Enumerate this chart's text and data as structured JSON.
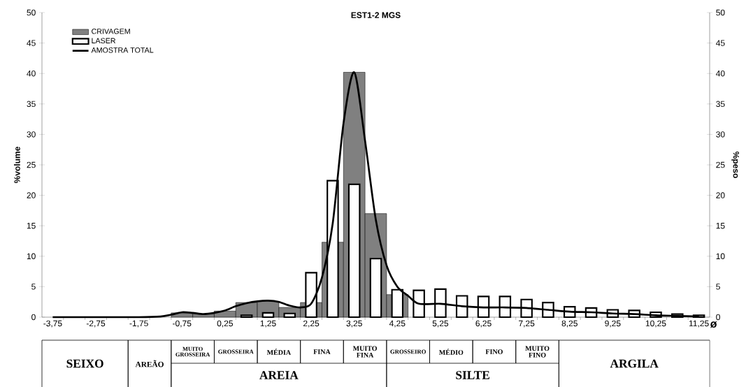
{
  "chart_data": {
    "type": "bar",
    "title": "EST1-2 MGS",
    "xlabel": "ø",
    "ylabel": "%volume",
    "y2label": "%peso",
    "xlim": [
      -4,
      11.5
    ],
    "ylim": [
      0,
      50
    ],
    "yticks": [
      0,
      5,
      10,
      15,
      20,
      25,
      30,
      35,
      40,
      45,
      50
    ],
    "y2lim": [
      0,
      50
    ],
    "y2ticks": [
      0,
      5,
      10,
      15,
      20,
      25,
      30,
      35,
      40,
      45,
      50
    ],
    "xticks": [
      {
        "value": -3.75,
        "label": "-3,75"
      },
      {
        "value": -2.75,
        "label": "-2,75"
      },
      {
        "value": -1.75,
        "label": "-1,75"
      },
      {
        "value": -0.75,
        "label": "-0,75"
      },
      {
        "value": 0.25,
        "label": "0,25"
      },
      {
        "value": 1.25,
        "label": "1,25"
      },
      {
        "value": 2.25,
        "label": "2,25"
      },
      {
        "value": 3.25,
        "label": "3,25"
      },
      {
        "value": 4.25,
        "label": "4,25"
      },
      {
        "value": 5.25,
        "label": "5,25"
      },
      {
        "value": 6.25,
        "label": "6,25"
      },
      {
        "value": 7.25,
        "label": "7,25"
      },
      {
        "value": 8.25,
        "label": "8,25"
      },
      {
        "value": 9.25,
        "label": "9,25"
      },
      {
        "value": 10.25,
        "label": "10,25"
      },
      {
        "value": 11.25,
        "label": "11,25"
      },
      {
        "value": -3.5,
        "label": null
      },
      {
        "value": -3,
        "label": null
      },
      {
        "value": -2.5,
        "label": null
      },
      {
        "value": -2,
        "label": null
      },
      {
        "value": -1.5,
        "label": null
      },
      {
        "value": -1,
        "label": null
      },
      {
        "value": -0.5,
        "label": null
      },
      {
        "value": 0,
        "label": null
      },
      {
        "value": 0.5,
        "label": null
      },
      {
        "value": 1,
        "label": null
      },
      {
        "value": 1.5,
        "label": null
      },
      {
        "value": 2,
        "label": null
      },
      {
        "value": 2.5,
        "label": null
      },
      {
        "value": 3,
        "label": null
      },
      {
        "value": 3.5,
        "label": null
      },
      {
        "value": 4,
        "label": null
      },
      {
        "value": 4.5,
        "label": null
      },
      {
        "value": 5,
        "label": null
      },
      {
        "value": 5.5,
        "label": null
      },
      {
        "value": 6,
        "label": null
      },
      {
        "value": 6.5,
        "label": null
      },
      {
        "value": 7,
        "label": null
      },
      {
        "value": 7.5,
        "label": null
      },
      {
        "value": 8,
        "label": null
      },
      {
        "value": 8.5,
        "label": null
      },
      {
        "value": 9,
        "label": null
      },
      {
        "value": 9.5,
        "label": null
      },
      {
        "value": 10,
        "label": null
      },
      {
        "value": 10.5,
        "label": null
      },
      {
        "value": 11,
        "label": null
      }
    ],
    "legend": "top left",
    "series": [
      {
        "name": "CRIVAGEM",
        "type": "histogram",
        "color": "#808080",
        "bins": [
          -1,
          -0.5,
          0,
          0.5,
          1,
          1.5,
          2,
          2.5,
          3,
          3.5,
          4,
          4.5
        ],
        "values": [
          0.7,
          0.5,
          1.0,
          2.4,
          2.6,
          1.6,
          2.4,
          12.3,
          40.2,
          17.0,
          3.7
        ]
      },
      {
        "name": "LASER",
        "color": "#ffffff",
        "x": [
          0.75,
          1.25,
          1.75,
          2.25,
          2.75,
          3.25,
          3.75,
          4.25,
          4.75,
          5.25,
          5.75,
          6.25,
          6.75,
          7.25,
          7.75,
          8.25,
          8.75,
          9.25,
          9.75,
          10.25,
          10.75,
          11.25
        ],
        "values": [
          0.3,
          0.7,
          0.6,
          7.3,
          22.4,
          21.8,
          9.6,
          4.5,
          4.4,
          4.6,
          3.5,
          3.4,
          3.4,
          2.9,
          2.4,
          1.7,
          1.5,
          1.2,
          1.1,
          0.8,
          0.5,
          0.3
        ]
      },
      {
        "name": "AMOSTRA TOTAL",
        "type": "line",
        "color": "#000000",
        "x": [
          -3.75,
          -2.75,
          -1.75,
          -1.25,
          -1.0,
          -0.75,
          -0.5,
          -0.25,
          0,
          0.25,
          0.5,
          0.75,
          1.0,
          1.25,
          1.5,
          1.75,
          2.0,
          2.25,
          2.5,
          2.75,
          3.0,
          3.25,
          3.5,
          3.75,
          4.0,
          4.25,
          4.5,
          4.75,
          5.25,
          5.75,
          6.25,
          6.75,
          7.25,
          7.75,
          8.25,
          8.75,
          9.25,
          9.75,
          10.25,
          10.75,
          11.25
        ],
        "values": [
          0,
          0,
          0,
          0.1,
          0.4,
          0.8,
          0.7,
          0.5,
          0.7,
          1.1,
          1.8,
          2.3,
          2.6,
          2.7,
          2.5,
          1.9,
          1.6,
          2.2,
          6.5,
          15.4,
          31.8,
          40.2,
          29.0,
          16.0,
          8.5,
          5.0,
          3.5,
          2.2,
          2.2,
          1.8,
          1.6,
          1.6,
          1.5,
          1.2,
          0.9,
          0.8,
          0.6,
          0.5,
          0.3,
          0.2,
          0.1
        ]
      }
    ],
    "annotations": [
      "SEIXO",
      "AREÃO",
      "MUITO GROSSEIRA",
      "GROSSEIRA",
      "MÉDIA",
      "FINA",
      "MUITO FINA",
      "AREIA",
      "GROSSEIRO",
      "MÉDIO",
      "FINO",
      "MUITO FINO",
      "SILTE",
      "ARGILA"
    ]
  }
}
